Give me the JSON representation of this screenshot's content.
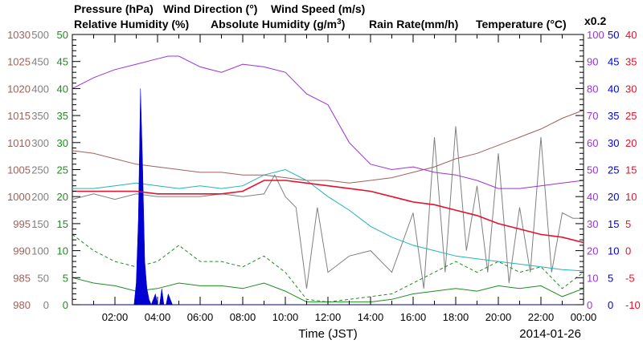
{
  "header": {
    "pressure": "Pressure (hPa)",
    "wind_direction": "Wind Direction (°)",
    "wind_speed": "Wind Speed (m/s)",
    "relative_humidity": "Relative Humidity (%)",
    "absolute_humidity_prefix": "Absolute Humidity (g/m",
    "absolute_humidity_sup": "3",
    "absolute_humidity_suffix": ")",
    "rain_rate": "Rain Rate(mm/h)",
    "temperature": "Temperature (°C)",
    "factor": "x0.2"
  },
  "xaxis": {
    "title": "Time (JST)",
    "date": "2014-01-26",
    "ticks": [
      "02:00",
      "04:00",
      "06:00",
      "08:00",
      "10:00",
      "12:00",
      "14:00",
      "16:00",
      "18:00",
      "20:00",
      "22:00",
      "00:00"
    ]
  },
  "left_axes": {
    "pressure": [
      "980",
      "985",
      "990",
      "995",
      "1000",
      "1005",
      "1010",
      "1015",
      "1020",
      "1025",
      "1030"
    ],
    "wind_direction": [
      "0",
      "50",
      "100",
      "150",
      "200",
      "250",
      "300",
      "350",
      "400",
      "450",
      "500"
    ],
    "wind_speed": [
      "0",
      "5",
      "10",
      "15",
      "20",
      "25",
      "30",
      "35",
      "40",
      "45",
      "50"
    ]
  },
  "right_axes": {
    "relative_humidity": [
      "0",
      "10",
      "20",
      "30",
      "40",
      "50",
      "60",
      "70",
      "80",
      "90",
      "100"
    ],
    "rain_rate": [
      "0",
      "5",
      "10",
      "15",
      "20",
      "25",
      "30",
      "35",
      "40",
      "45",
      "50"
    ],
    "temperature": [
      "-10",
      "-5",
      "0",
      "5",
      "10",
      "15",
      "20",
      "25",
      "30",
      "35",
      "40"
    ]
  },
  "colors": {
    "pressure": "#a0605a",
    "wind_direction": "#808080",
    "wind_speed": "#1e8c1e",
    "relative_humidity": "#9b30e0",
    "absolute_humidity": "#22b4b4",
    "rain_rate": "#0000d2",
    "temperature": "#e8102a"
  },
  "chart_data": {
    "type": "line",
    "x_unit": "hours since 2014-01-25 24:00 JST",
    "xlim": [
      0,
      24
    ],
    "series": [
      {
        "name": "Pressure (hPa)",
        "axis": "pressure",
        "ylim": [
          980,
          1030
        ],
        "x": [
          0,
          1,
          2,
          3,
          4,
          5,
          6,
          7,
          8,
          9,
          10,
          11,
          12,
          13,
          14,
          15,
          16,
          17,
          18,
          19,
          20,
          21,
          22,
          23,
          24
        ],
        "values": [
          1008.5,
          1008,
          1007,
          1006,
          1005.5,
          1005,
          1004.5,
          1004.5,
          1004,
          1004,
          1003.5,
          1003,
          1003,
          1002.5,
          1003,
          1003.5,
          1004.5,
          1005.5,
          1007,
          1008,
          1009.5,
          1011,
          1012.5,
          1014.5,
          1016
        ]
      },
      {
        "name": "Wind Direction (°)",
        "axis": "wind_direction",
        "ylim": [
          0,
          500
        ],
        "x": [
          0,
          1,
          2,
          3,
          4,
          5,
          6,
          7,
          8,
          9,
          9.5,
          10,
          10.5,
          11,
          11.5,
          12,
          13,
          14,
          15,
          16,
          16.5,
          17,
          17.5,
          18,
          18.5,
          19,
          19.5,
          20,
          20.5,
          21,
          21.5,
          22,
          22.5,
          23,
          23.5,
          24
        ],
        "values": [
          195,
          205,
          195,
          205,
          200,
          200,
          200,
          205,
          200,
          205,
          240,
          200,
          180,
          30,
          180,
          60,
          90,
          100,
          60,
          170,
          30,
          310,
          60,
          330,
          100,
          220,
          60,
          280,
          40,
          180,
          60,
          310,
          60,
          170,
          160,
          160
        ]
      },
      {
        "name": "Wind Speed (m/s) avg",
        "axis": "wind_speed",
        "ylim": [
          0,
          50
        ],
        "style": "solid",
        "x": [
          0,
          1,
          2,
          3,
          4,
          5,
          6,
          7,
          8,
          9,
          10,
          11,
          12,
          13,
          14,
          15,
          16,
          17,
          18,
          19,
          20,
          21,
          22,
          23,
          24
        ],
        "values": [
          5,
          4,
          3.5,
          2.5,
          3,
          4,
          3.5,
          3.5,
          3,
          4,
          2.5,
          0.5,
          0.5,
          0.5,
          0.5,
          1,
          2,
          2.5,
          3,
          2.5,
          3.5,
          3,
          3.5,
          1.5,
          3
        ]
      },
      {
        "name": "Wind Speed (m/s) gust",
        "axis": "wind_speed",
        "ylim": [
          0,
          50
        ],
        "style": "dashed",
        "x": [
          0,
          1,
          2,
          3,
          4,
          5,
          6,
          7,
          8,
          9,
          10,
          11,
          12,
          13,
          14,
          15,
          16,
          17,
          18,
          19,
          20,
          21,
          22,
          23,
          24
        ],
        "values": [
          13,
          10,
          8,
          7,
          8,
          11,
          8,
          8,
          7,
          9,
          6,
          1,
          0.5,
          1,
          1.5,
          2,
          4,
          6,
          8,
          6,
          8,
          6,
          7,
          3,
          6
        ]
      },
      {
        "name": "Relative Humidity (%)",
        "axis": "relative_humidity",
        "ylim": [
          0,
          100
        ],
        "x": [
          0,
          1,
          2,
          3,
          4,
          4.5,
          5,
          6,
          7,
          8,
          9,
          10,
          10.5,
          11,
          12,
          13,
          14,
          15,
          16,
          17,
          18,
          19,
          20,
          21,
          22,
          23,
          24
        ],
        "values": [
          80,
          84,
          87,
          89,
          91,
          92,
          92,
          88,
          86,
          89,
          88,
          86,
          82,
          78,
          74,
          60,
          52,
          50,
          51,
          49,
          48,
          46,
          43,
          43,
          44,
          45,
          46
        ]
      },
      {
        "name": "Absolute Humidity (g/m3) x0.2",
        "axis": "relative_humidity",
        "ylim": [
          0,
          100
        ],
        "x": [
          0,
          1,
          2,
          3,
          4,
          5,
          6,
          7,
          8,
          9,
          10,
          11,
          12,
          13,
          14,
          15,
          16,
          17,
          18,
          19,
          20,
          21,
          22,
          23,
          24
        ],
        "values": [
          43,
          43,
          44,
          45,
          44,
          43,
          44,
          43,
          44,
          48,
          50,
          46,
          40,
          35,
          29,
          25,
          22,
          20,
          18,
          17,
          16,
          15,
          14,
          13,
          12.5
        ]
      },
      {
        "name": "Rain Rate(mm/h)",
        "axis": "rain_rate",
        "ylim": [
          0,
          50
        ],
        "style": "filled",
        "x": [
          0,
          2.9,
          3.0,
          3.1,
          3.2,
          3.3,
          3.4,
          3.5,
          3.6,
          3.7,
          3.8,
          3.9,
          4.0,
          4.1,
          4.2,
          4.3,
          4.4,
          4.5,
          4.6,
          4.7,
          4.8,
          24
        ],
        "values": [
          0,
          0,
          4,
          16,
          40,
          26,
          8,
          3,
          1,
          0,
          1,
          2,
          0,
          0,
          3,
          0,
          0,
          2,
          1,
          0,
          0,
          0
        ]
      },
      {
        "name": "Temperature (°C)",
        "axis": "temperature",
        "ylim": [
          -10,
          40
        ],
        "x": [
          0,
          1,
          2,
          3,
          4,
          5,
          6,
          7,
          8,
          9,
          10,
          11,
          12,
          13,
          14,
          15,
          16,
          17,
          18,
          19,
          20,
          21,
          22,
          23,
          24
        ],
        "values": [
          11,
          11,
          11,
          11,
          10.5,
          10.5,
          10.5,
          10.5,
          11,
          13,
          13,
          12.5,
          12,
          11.5,
          11,
          10,
          9,
          8.5,
          7.5,
          6.5,
          5,
          4,
          3,
          2.5,
          1.5
        ]
      }
    ],
    "grid": "none",
    "legend": "top"
  }
}
